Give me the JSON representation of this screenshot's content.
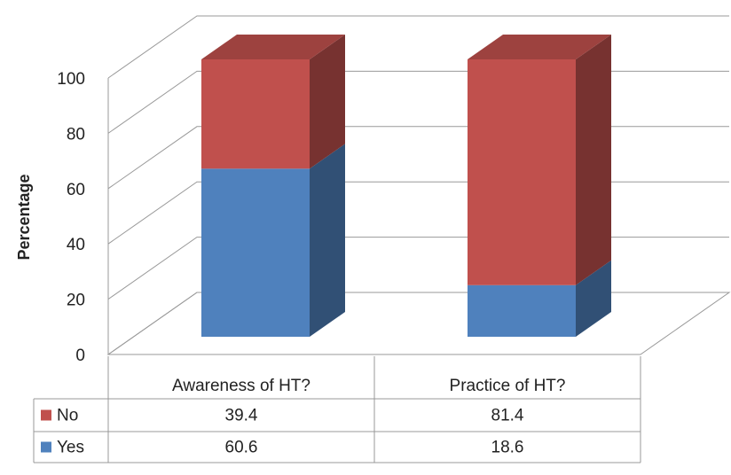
{
  "chart_data": {
    "type": "bar",
    "stacked": true,
    "three_d": true,
    "ylabel": "Percentage",
    "categories": [
      "Awareness of HT?",
      "Practice of HT?"
    ],
    "series": [
      {
        "name": "No",
        "color": "#c0504d",
        "values": [
          39.4,
          81.4
        ]
      },
      {
        "name": "Yes",
        "color": "#4f81bd",
        "values": [
          60.6,
          18.6
        ]
      }
    ],
    "ylim": [
      0,
      100
    ],
    "yticks": [
      0,
      20,
      40,
      60,
      80,
      100
    ],
    "grid": true,
    "data_table": true
  }
}
